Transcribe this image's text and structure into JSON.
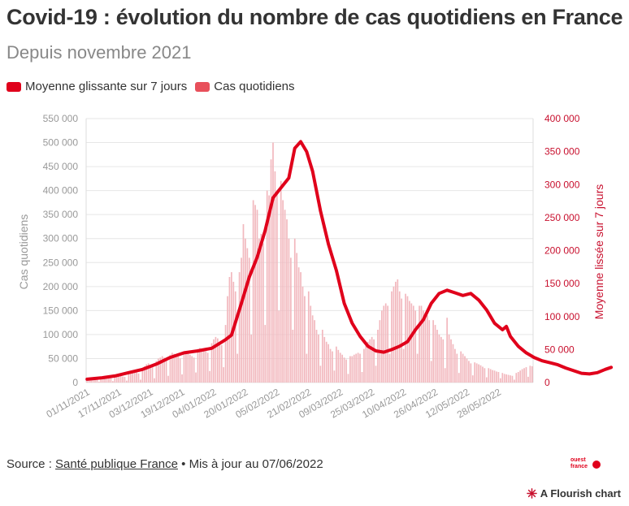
{
  "header": {
    "title": "Covid-19 : évolution du nombre de cas quotidiens en France",
    "subtitle": "Depuis novembre 2021"
  },
  "legend": {
    "items": [
      {
        "label": "Moyenne glissante sur 7 jours",
        "color": "#e0001b"
      },
      {
        "label": "Cas quotidiens",
        "color": "#e8505b"
      }
    ]
  },
  "footer": {
    "source_prefix": "Source : ",
    "source_link": "Santé publique France",
    "separator": " • ",
    "updated": "Mis à jour au 07/06/2022",
    "brand": "A Flourish chart",
    "logo_text": "ouest france"
  },
  "colors": {
    "line": "#e0001b",
    "bars": "#f2b8be",
    "left_axis_text": "#999999",
    "right_axis_text": "#c8102e",
    "grid": "#e6e6e6"
  },
  "chart_data": {
    "type": "bar+line",
    "x_start": "01/11/2021",
    "x_end": "07/06/2022",
    "x_tick_labels": [
      "01/11/2021",
      "17/11/2021",
      "03/12/2021",
      "19/12/2021",
      "04/01/2022",
      "20/01/2022",
      "05/02/2022",
      "21/02/2022",
      "09/03/2022",
      "25/03/2022",
      "10/04/2022",
      "26/04/2022",
      "12/05/2022",
      "28/05/2022"
    ],
    "y_left": {
      "label": "Cas quotidiens",
      "ticks": [
        "0",
        "50 000",
        "100 000",
        "150 000",
        "200 000",
        "250 000",
        "300 000",
        "350 000",
        "400 000",
        "450 000",
        "500 000",
        "550 000"
      ],
      "range": [
        0,
        550000
      ]
    },
    "y_right": {
      "label": "Moyenne lissée sur 7 jours",
      "ticks": [
        "0",
        "50 000",
        "100 000",
        "150 000",
        "200 000",
        "250 000",
        "300 000",
        "350 000",
        "400 000"
      ],
      "range": [
        0,
        400000
      ]
    },
    "series": [
      {
        "name": "Cas quotidiens",
        "axis": "left",
        "values": [
          3000,
          9000,
          8000,
          7500,
          7000,
          6000,
          2000,
          9000,
          11000,
          10000,
          10500,
          10000,
          9000,
          3000,
          12000,
          13000,
          13000,
          14000,
          12500,
          12000,
          4000,
          18000,
          20000,
          22000,
          24000,
          21000,
          19000,
          6000,
          30000,
          34000,
          38000,
          40000,
          36000,
          33000,
          9000,
          45000,
          50000,
          52000,
          55000,
          52000,
          49000,
          14000,
          58000,
          62000,
          60000,
          57000,
          54000,
          50000,
          17000,
          62000,
          64000,
          62000,
          58000,
          55000,
          52000,
          21000,
          70000,
          72000,
          71000,
          67000,
          65000,
          62000,
          24000,
          82000,
          90000,
          95000,
          92000,
          85000,
          78000,
          32000,
          120000,
          180000,
          220000,
          230000,
          210000,
          190000,
          60000,
          230000,
          260000,
          330000,
          300000,
          280000,
          260000,
          100000,
          380000,
          370000,
          360000,
          300000,
          310000,
          290000,
          120000,
          400000,
          390000,
          465000,
          500000,
          440000,
          400000,
          150000,
          420000,
          380000,
          360000,
          340000,
          300000,
          260000,
          110000,
          300000,
          270000,
          240000,
          230000,
          200000,
          180000,
          60000,
          190000,
          160000,
          140000,
          130000,
          110000,
          100000,
          35000,
          110000,
          95000,
          85000,
          80000,
          70000,
          65000,
          25000,
          75000,
          68000,
          62000,
          58000,
          52000,
          48000,
          18000,
          55000,
          55000,
          58000,
          60000,
          62000,
          60000,
          22000,
          70000,
          80000,
          85000,
          90000,
          95000,
          90000,
          35000,
          110000,
          130000,
          150000,
          160000,
          165000,
          160000,
          60000,
          190000,
          200000,
          210000,
          215000,
          190000,
          175000,
          70000,
          185000,
          180000,
          170000,
          165000,
          160000,
          150000,
          60000,
          160000,
          160000,
          150000,
          145000,
          140000,
          130000,
          45000,
          130000,
          120000,
          110000,
          100000,
          95000,
          90000,
          30000,
          135000,
          100000,
          90000,
          80000,
          70000,
          60000,
          20000,
          65000,
          60000,
          55000,
          50000,
          45000,
          40000,
          15000,
          42000,
          40000,
          38000,
          36000,
          33000,
          30000,
          11000,
          30000,
          28000,
          26000,
          25000,
          23000,
          22000,
          9000,
          20000,
          18000,
          17000,
          16000,
          15000,
          14000,
          6000,
          20000,
          22000,
          25000,
          28000,
          30000,
          32000,
          12000,
          35000,
          34000
        ]
      },
      {
        "name": "Moyenne glissante sur 7 jours",
        "axis": "right",
        "values": [
          [
            0,
            5000
          ],
          [
            7,
            7000
          ],
          [
            14,
            10000
          ],
          [
            21,
            15000
          ],
          [
            28,
            20000
          ],
          [
            35,
            28000
          ],
          [
            42,
            38000
          ],
          [
            49,
            45000
          ],
          [
            56,
            48000
          ],
          [
            63,
            52000
          ],
          [
            70,
            65000
          ],
          [
            73,
            72000
          ],
          [
            78,
            120000
          ],
          [
            82,
            160000
          ],
          [
            86,
            190000
          ],
          [
            90,
            230000
          ],
          [
            94,
            280000
          ],
          [
            98,
            295000
          ],
          [
            102,
            310000
          ],
          [
            105,
            355000
          ],
          [
            108,
            365000
          ],
          [
            111,
            350000
          ],
          [
            114,
            320000
          ],
          [
            118,
            260000
          ],
          [
            122,
            210000
          ],
          [
            126,
            170000
          ],
          [
            130,
            120000
          ],
          [
            134,
            90000
          ],
          [
            138,
            70000
          ],
          [
            142,
            55000
          ],
          [
            146,
            48000
          ],
          [
            150,
            46000
          ],
          [
            154,
            50000
          ],
          [
            158,
            55000
          ],
          [
            162,
            62000
          ],
          [
            166,
            80000
          ],
          [
            170,
            95000
          ],
          [
            174,
            120000
          ],
          [
            178,
            135000
          ],
          [
            182,
            140000
          ],
          [
            186,
            136000
          ],
          [
            190,
            132000
          ],
          [
            194,
            135000
          ],
          [
            198,
            125000
          ],
          [
            202,
            110000
          ],
          [
            206,
            90000
          ],
          [
            210,
            80000
          ],
          [
            212,
            85000
          ],
          [
            214,
            70000
          ],
          [
            218,
            55000
          ],
          [
            222,
            45000
          ],
          [
            226,
            38000
          ],
          [
            230,
            33000
          ],
          [
            234,
            30000
          ],
          [
            238,
            27000
          ],
          [
            242,
            22000
          ],
          [
            246,
            18000
          ],
          [
            250,
            14000
          ],
          [
            254,
            13000
          ],
          [
            258,
            15000
          ],
          [
            262,
            20000
          ],
          [
            265,
            23000
          ]
        ]
      }
    ]
  }
}
